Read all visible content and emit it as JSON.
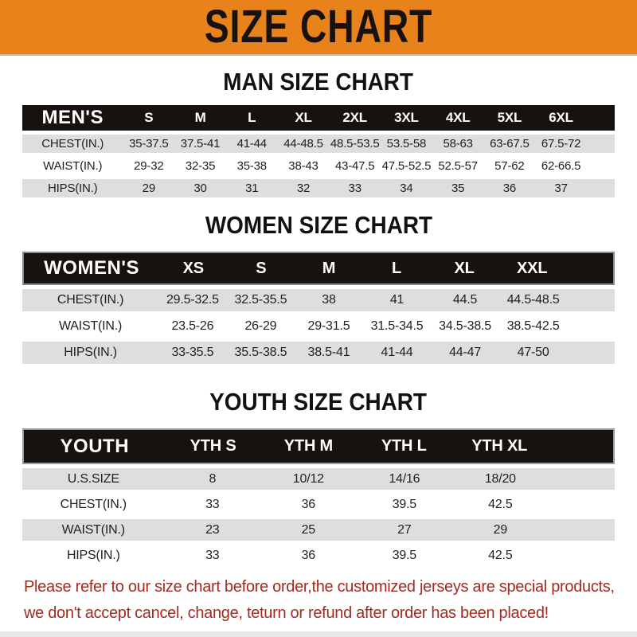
{
  "banner": {
    "title": "SIZE CHART"
  },
  "sections": {
    "men": {
      "title": "MAN SIZE CHART",
      "label": "MEN'S",
      "sizes": [
        "S",
        "M",
        "L",
        "XL",
        "2XL",
        "3XL",
        "4XL",
        "5XL",
        "6XL"
      ],
      "rows": [
        {
          "label": "CHEST(IN.)",
          "values": [
            "35-37.5",
            "37.5-41",
            "41-44",
            "44-48.5",
            "48.5-53.5",
            "53.5-58",
            "58-63",
            "63-67.5",
            "67.5-72"
          ]
        },
        {
          "label": "WAIST(IN.)",
          "values": [
            "29-32",
            "32-35",
            "35-38",
            "38-43",
            "43-47.5",
            "47.5-52.5",
            "52.5-57",
            "57-62",
            "62-66.5"
          ]
        },
        {
          "label": "HIPS(IN.)",
          "values": [
            "29",
            "30",
            "31",
            "32",
            "33",
            "34",
            "35",
            "36",
            "37"
          ]
        }
      ]
    },
    "women": {
      "title": "WOMEN SIZE CHART",
      "label": "WOMEN'S",
      "sizes": [
        "XS",
        "S",
        "M",
        "L",
        "XL",
        "XXL"
      ],
      "rows": [
        {
          "label": "CHEST(IN.)",
          "values": [
            "29.5-32.5",
            "32.5-35.5",
            "38",
            "41",
            "44.5",
            "44.5-48.5"
          ]
        },
        {
          "label": "WAIST(IN.)",
          "values": [
            "23.5-26",
            "26-29",
            "29-31.5",
            "31.5-34.5",
            "34.5-38.5",
            "38.5-42.5"
          ]
        },
        {
          "label": "HIPS(IN.)",
          "values": [
            "33-35.5",
            "35.5-38.5",
            "38.5-41",
            "41-44",
            "44-47",
            "47-50"
          ]
        }
      ]
    },
    "youth": {
      "title": "YOUTH SIZE CHART",
      "label": "YOUTH",
      "sizes": [
        "YTH S",
        "YTH M",
        "YTH L",
        "YTH XL"
      ],
      "rows": [
        {
          "label": "U.S.SIZE",
          "values": [
            "8",
            "10/12",
            "14/16",
            "18/20"
          ]
        },
        {
          "label": "CHEST(IN.)",
          "values": [
            "33",
            "36",
            "39.5",
            "42.5"
          ]
        },
        {
          "label": "WAIST(IN.)",
          "values": [
            "23",
            "25",
            "27",
            "29"
          ]
        },
        {
          "label": "HIPS(IN.)",
          "values": [
            "33",
            "36",
            "39.5",
            "42.5"
          ]
        }
      ]
    }
  },
  "footer": {
    "line1": "Please refer to our size chart before order,the customized jerseys are special products,",
    "line2": "we don't accept cancel, change, teturn or refund after order has been placed!"
  },
  "colors": {
    "accent_orange": "#E8821B",
    "header_black": "#17120F",
    "row_gray": "#DEDEDE",
    "footer_red": "#A32B20"
  }
}
